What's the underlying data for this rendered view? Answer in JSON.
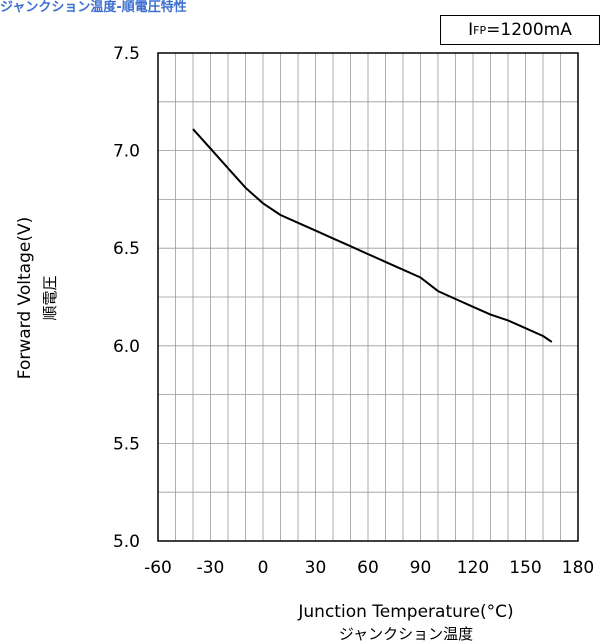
{
  "title": "ジャンクション温度-順電圧特性",
  "condition": {
    "symbol": "I",
    "subscript": "FP",
    "value": "=1200mA"
  },
  "chart_data": {
    "type": "line",
    "title": "ジャンクション温度-順電圧特性",
    "xlabel": "Junction Temperature(°C)",
    "xlabel_jp": "ジャンクション温度",
    "ylabel": "Forward Voltage(V)",
    "ylabel_jp": "順電圧",
    "xlim": [
      -60,
      180
    ],
    "ylim": [
      5.0,
      7.5
    ],
    "x_ticks": [
      -60,
      -30,
      0,
      30,
      60,
      90,
      120,
      150,
      180
    ],
    "x_tick_labels": [
      "-60",
      "-30",
      "0",
      "30",
      "60",
      "90",
      "120",
      "150",
      "180"
    ],
    "y_ticks": [
      5.0,
      5.5,
      6.0,
      6.5,
      7.0,
      7.5
    ],
    "y_tick_labels": [
      "5.0",
      "5.5",
      "6.0",
      "6.5",
      "7.0",
      "7.5"
    ],
    "x_minor_step": 10,
    "y_minor_step": 0.25,
    "grid": true,
    "series": [
      {
        "color": "#000000",
        "x": [
          -40,
          -30,
          -20,
          -10,
          0,
          10,
          20,
          30,
          40,
          50,
          60,
          70,
          80,
          90,
          100,
          110,
          120,
          130,
          140,
          150,
          160,
          165
        ],
        "y": [
          7.11,
          7.01,
          6.91,
          6.81,
          6.73,
          6.67,
          6.63,
          6.59,
          6.55,
          6.51,
          6.47,
          6.43,
          6.39,
          6.35,
          6.28,
          6.24,
          6.2,
          6.16,
          6.13,
          6.09,
          6.05,
          6.02
        ]
      }
    ]
  }
}
